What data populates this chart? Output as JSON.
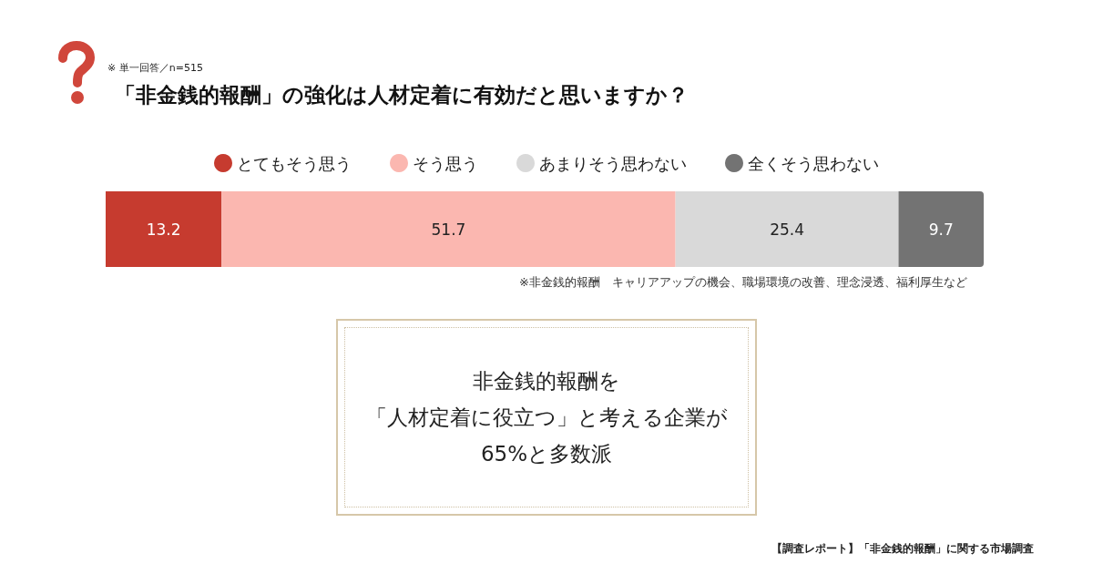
{
  "chart_data": {
    "type": "bar",
    "orientation": "horizontal",
    "stacked": true,
    "title": "「非金銭的報酬」の強化は人材定着に有効だと思いますか？",
    "subtitle": "※ 単一回答／n=515",
    "categories": [
      null
    ],
    "series": [
      {
        "name": "とてもそう思う",
        "color": "#c63b2f",
        "values": [
          13.2
        ]
      },
      {
        "name": "そう思う",
        "color": "#fbb7b0",
        "values": [
          51.7
        ]
      },
      {
        "name": "あまりそう思わない",
        "color": "#d9d9d9",
        "values": [
          25.4
        ]
      },
      {
        "name": "全くそう思わない",
        "color": "#737373",
        "values": [
          9.7
        ]
      }
    ],
    "xlim": [
      0,
      100
    ],
    "tick_labels": false,
    "data_labels": true,
    "legend": "top",
    "annotations": [
      "※非金銭的報酬　キャリアアップの機会、職場環境の改善、理念浸透、福利厚生など",
      "非金銭的報酬を",
      "「人材定着に役立つ」と考える企業が",
      "65%と多数派",
      "【調査レポート】「非金銭的報酬」に関する市場調査"
    ]
  }
}
